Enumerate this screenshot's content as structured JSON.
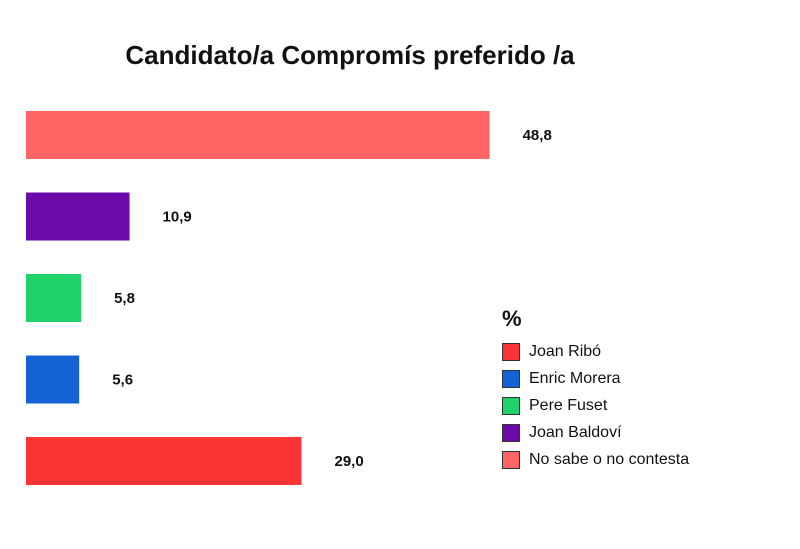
{
  "chart_data": {
    "type": "bar",
    "orientation": "horizontal",
    "title": "Candidato/a Compromís preferido /a",
    "categories": [
      "No sabe o no contesta",
      "Joan Baldoví",
      "Pere Fuset",
      "Enric Morera",
      "Joan Ribó"
    ],
    "values": [
      48.8,
      10.9,
      5.8,
      5.6,
      29.0
    ],
    "value_labels": [
      "48,8",
      "10,9",
      "5,8",
      "5,6",
      "29,0"
    ],
    "colors": [
      "#ff6565",
      "#6b0aa8",
      "#1fd36a",
      "#1463d4",
      "#fb3535"
    ],
    "xlim": [
      0,
      60
    ],
    "grid": false,
    "legend_position": "bottom-right",
    "legend": {
      "title": "%",
      "entries": [
        {
          "label": "Joan Ribó",
          "color": "#fb3535"
        },
        {
          "label": "Enric Morera",
          "color": "#1463d4"
        },
        {
          "label": "Pere Fuset",
          "color": "#1fd36a"
        },
        {
          "label": "Joan Baldoví",
          "color": "#6b0aa8"
        },
        {
          "label": "No sabe o no contesta",
          "color": "#ff6565"
        }
      ]
    }
  }
}
